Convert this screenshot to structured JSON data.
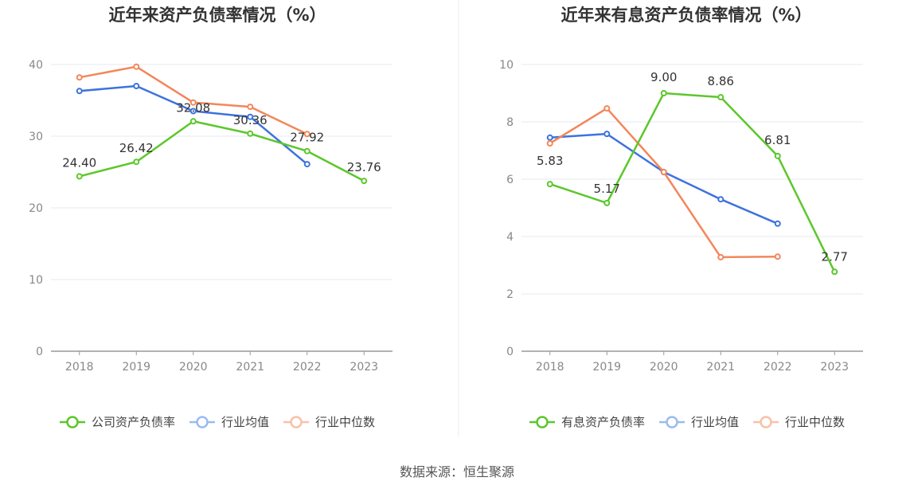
{
  "footer": {
    "source": "数据来源：恒生聚源"
  },
  "chart_data": [
    {
      "type": "line",
      "title": "近年来资产负债率情况（%）",
      "x": [
        "2018",
        "2019",
        "2020",
        "2021",
        "2022",
        "2023"
      ],
      "ylim": [
        0,
        40
      ],
      "yticks": [
        0,
        10,
        20,
        30,
        40
      ],
      "grid": true,
      "legend_position": "bottom-center",
      "series": [
        {
          "name": "公司资产负债率",
          "color": "#5cc72b",
          "values": [
            24.4,
            26.42,
            32.08,
            30.36,
            27.92,
            23.76
          ],
          "labels": [
            "24.40",
            "26.42",
            "32.08",
            "30.36",
            "27.92",
            "23.76"
          ]
        },
        {
          "name": "行业均值",
          "color": "#3d73dd",
          "values": [
            36.3,
            37.0,
            33.5,
            32.7,
            26.1,
            null
          ]
        },
        {
          "name": "行业中位数",
          "color": "#f2875a",
          "values": [
            38.2,
            39.7,
            34.7,
            34.1,
            30.3,
            null
          ]
        }
      ]
    },
    {
      "type": "line",
      "title": "近年来有息资产负债率情况（%）",
      "x": [
        "2018",
        "2019",
        "2020",
        "2021",
        "2022",
        "2023"
      ],
      "ylim": [
        0,
        10
      ],
      "yticks": [
        0,
        2,
        4,
        6,
        8,
        10
      ],
      "grid": true,
      "legend_position": "bottom-center",
      "series": [
        {
          "name": "有息资产负债率",
          "color": "#5cc72b",
          "values": [
            5.83,
            5.17,
            9.0,
            8.86,
            6.81,
            2.77
          ],
          "labels": [
            "5.83",
            "5.17",
            "9.00",
            "8.86",
            "6.81",
            "2.77"
          ]
        },
        {
          "name": "行业均值",
          "color": "#3d73dd",
          "values": [
            7.45,
            7.58,
            6.25,
            5.3,
            4.45,
            null
          ]
        },
        {
          "name": "行业中位数",
          "color": "#f2875a",
          "values": [
            7.25,
            8.47,
            6.25,
            3.28,
            3.3,
            null
          ]
        }
      ]
    }
  ]
}
